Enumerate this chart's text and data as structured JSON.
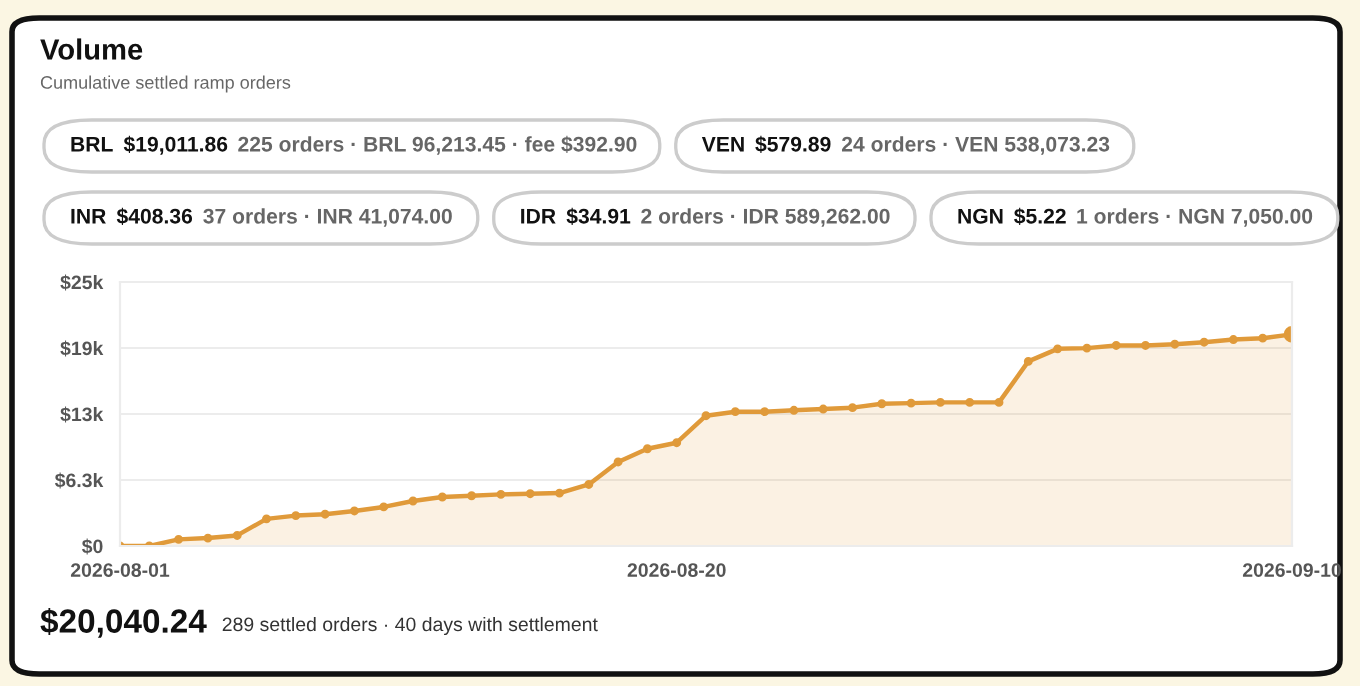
{
  "chart_data": {
    "type": "area",
    "title": "Volume",
    "subtitle": "Cumulative settled ramp orders",
    "annotations": [
      "BRL",
      "$19,011.86",
      "225 orders · BRL 96,213.45 · fee $392.90",
      "VEN",
      "$579.89",
      "24 orders · VEN 538,073.23",
      "INR",
      "$408.36",
      "37 orders · INR 41,074.00",
      "IDR",
      "$34.91",
      "2 orders · IDR 589,262.00",
      "NGN",
      "$5.22",
      "1 orders · NGN 7,050.00",
      "$20,040.24",
      "289 settled orders · 40 days with settlement"
    ],
    "x": [
      "2026-08-01",
      "2026-08-02",
      "2026-08-03",
      "2026-08-04",
      "2026-08-05",
      "2026-08-06",
      "2026-08-07",
      "2026-08-08",
      "2026-08-09",
      "2026-08-10",
      "2026-08-11",
      "2026-08-12",
      "2026-08-13",
      "2026-08-14",
      "2026-08-15",
      "2026-08-16",
      "2026-08-17",
      "2026-08-18",
      "2026-08-19",
      "2026-08-20",
      "2026-08-21",
      "2026-08-22",
      "2026-08-23",
      "2026-08-24",
      "2026-08-25",
      "2026-08-26",
      "2026-08-27",
      "2026-08-28",
      "2026-08-29",
      "2026-08-30",
      "2026-08-31",
      "2026-09-01",
      "2026-09-02",
      "2026-09-03",
      "2026-09-04",
      "2026-09-05",
      "2026-09-06",
      "2026-09-07",
      "2026-09-08",
      "2026-09-09",
      "2026-09-10"
    ],
    "series": [
      {
        "color": "#e09a3a",
        "values": [
          0,
          0,
          630,
          750,
          1000,
          2570,
          2880,
          3010,
          3320,
          3700,
          4260,
          4640,
          4760,
          4890,
          4950,
          5010,
          5830,
          7960,
          9210,
          9780,
          12340,
          12720,
          12720,
          12850,
          12970,
          13100,
          13470,
          13530,
          13600,
          13600,
          13600,
          17480,
          18670,
          18740,
          18990,
          18990,
          19110,
          19300,
          19550,
          19680,
          20040
        ]
      }
    ],
    "xlim": [
      "2026-08-01",
      "2026-09-10"
    ],
    "xticks": [
      "2026-08-01",
      "2026-08-20",
      "2026-09-10"
    ],
    "ylim": [
      0,
      25000
    ],
    "yticks": [
      {
        "value": 0,
        "label": "$0"
      },
      {
        "value": 6250,
        "label": "$6.3k"
      },
      {
        "value": 12500,
        "label": "$13k"
      },
      {
        "value": 18750,
        "label": "$19k"
      },
      {
        "value": 25000,
        "label": "$25k"
      }
    ],
    "grid": "y",
    "marker": "circle",
    "line_style": "solid",
    "legend": false
  }
}
